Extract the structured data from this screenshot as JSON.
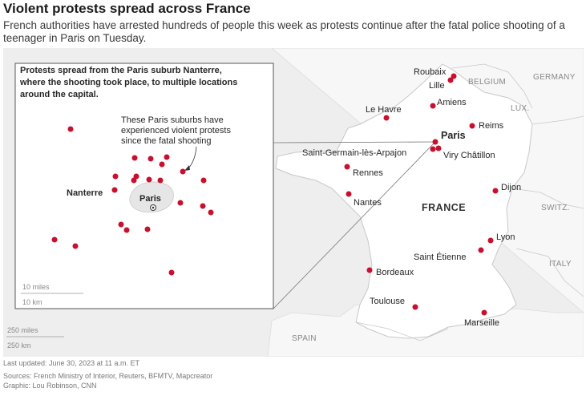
{
  "headline": "Violent protests spread across France",
  "dek": "French authorities have arrested hundreds of people this week as protests continue after the fatal police shooting of a teenager in Paris on Tuesday.",
  "inset": {
    "title": "Protests spread from the Paris suburb Nanterre, where the shooting took place, to multiple locations around the capital.",
    "title_lines": [
      "Protests spread from the Paris suburb Nanterre,",
      "where the shooting took place, to multiple locations",
      "around the capital."
    ],
    "annotation_lines": [
      "These Paris suburbs have",
      "experienced violent protests",
      "since the fatal shooting"
    ],
    "nanterre_label": "Nanterre",
    "paris_label": "Paris",
    "scale_miles": "10 miles",
    "scale_km": "10 km"
  },
  "main_scale": {
    "miles": "250 miles",
    "km": "250 km"
  },
  "countries": {
    "belgium": "BELGIUM",
    "germany": "GERMANY",
    "lux": "LUX.",
    "switz": "SWITZ.",
    "italy": "ITALY",
    "spain": "SPAIN",
    "france": "FRANCE"
  },
  "cities": {
    "roubaix": "Roubaix",
    "lille": "Lille",
    "amiens": "Amiens",
    "le_havre": "Le Havre",
    "paris": "Paris",
    "reims": "Reims",
    "saint_germain": "Saint-Germain-lès-Arpajon",
    "viry": "Viry Châtillon",
    "rennes": "Rennes",
    "nantes": "Nantes",
    "dijon": "Dijon",
    "lyon": "Lyon",
    "saint_etienne": "Saint Étienne",
    "bordeaux": "Bordeaux",
    "toulouse": "Toulouse",
    "marseille": "Marseille"
  },
  "colors": {
    "marker": "#c8102e",
    "land": "#ffffff",
    "background": "#eeeeee"
  },
  "footer": {
    "updated": "Last updated: June 30, 2023 at 11 a.m. ET",
    "sources": "Sources: French Ministry of Interior, Reuters, BFMTV, Mapcreator",
    "graphic": "Graphic: Lou Robinson, CNN"
  }
}
